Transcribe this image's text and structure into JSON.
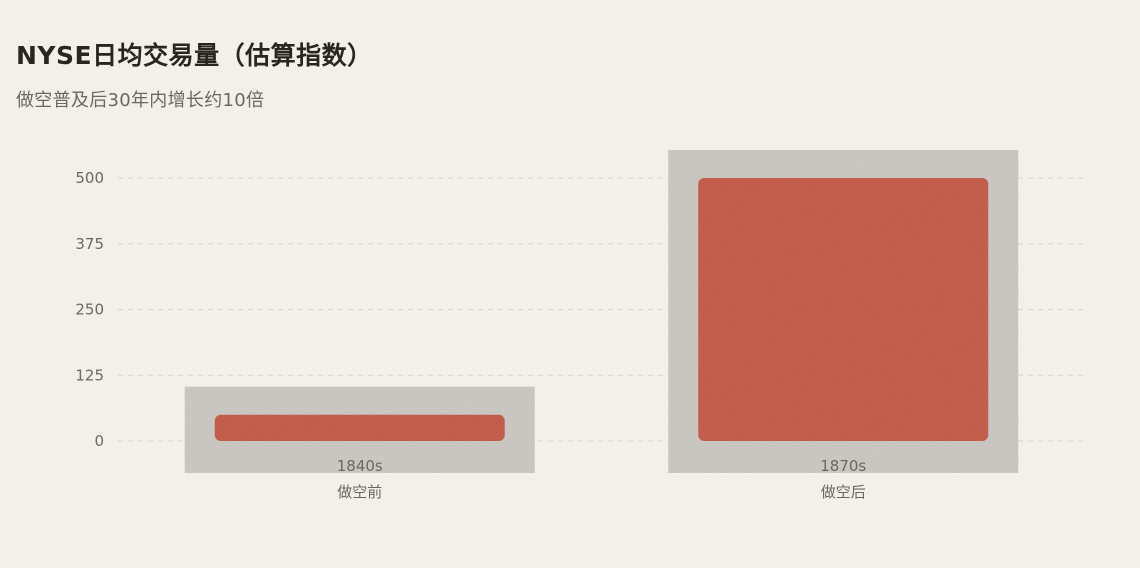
{
  "header": {
    "title": "NYSE日均交易量（估算指数）",
    "subtitle": "做空普及后30年内增长约10倍"
  },
  "colors": {
    "bar": "#c8604f",
    "bar_shadow": "#cfcbc6",
    "grid": "#d9d3cc",
    "background": "#f3efe9"
  },
  "chart_data": {
    "type": "bar",
    "categories": [
      "1840s",
      "1870s"
    ],
    "category_sublabels": [
      "做空前",
      "做空后"
    ],
    "values": [
      50,
      500
    ],
    "ylim": [
      0,
      500
    ],
    "yticks": [
      0,
      125,
      250,
      375,
      500
    ],
    "grid": true,
    "title": "NYSE日均交易量（估算指数）",
    "subtitle": "做空普及后30年内增长约10倍"
  }
}
